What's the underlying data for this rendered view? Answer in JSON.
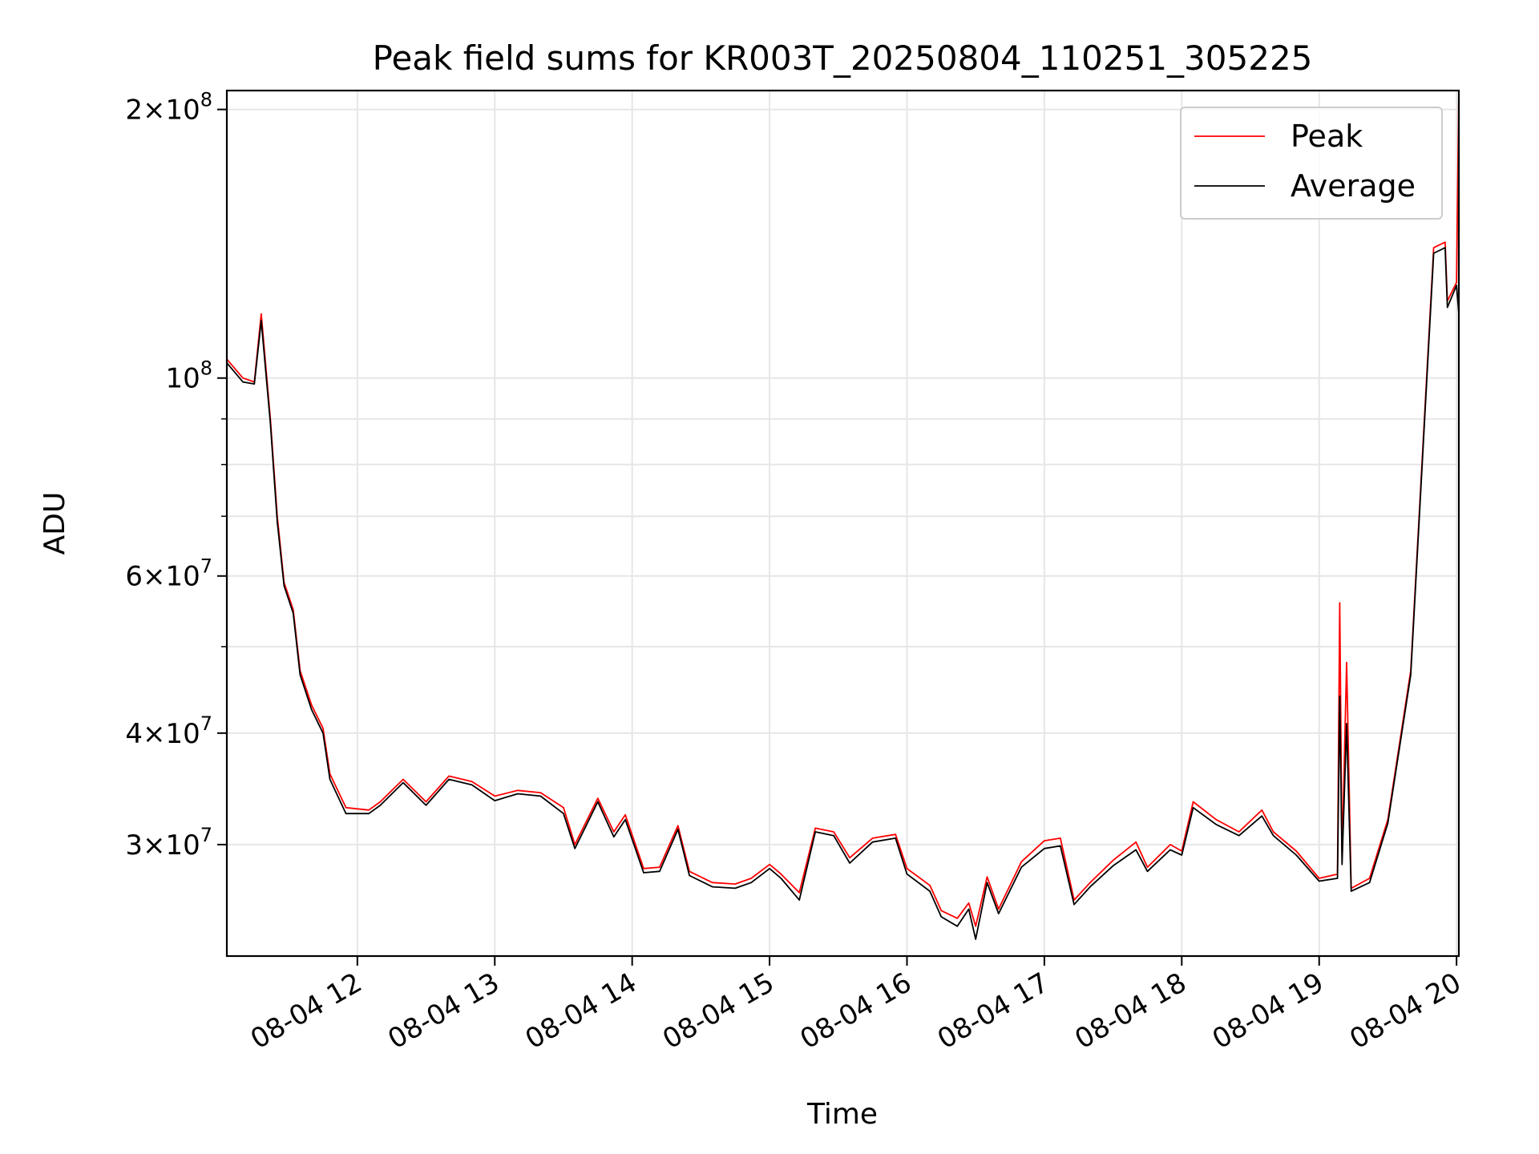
{
  "chart_data": {
    "type": "line",
    "title": "Peak field sums for KR003T_20250804_110251_305225",
    "xlabel": "Time",
    "ylabel": "ADU",
    "yscale": "log",
    "ylim": [
      22500000,
      210000000
    ],
    "xlim": [
      "2025-08-04T11:03",
      "2025-08-04T20:01"
    ],
    "grid": true,
    "legend_position": "upper right",
    "x_ticks": [
      {
        "label": "08-04 12",
        "t": "2025-08-04T12:00"
      },
      {
        "label": "08-04 13",
        "t": "2025-08-04T13:00"
      },
      {
        "label": "08-04 14",
        "t": "2025-08-04T14:00"
      },
      {
        "label": "08-04 15",
        "t": "2025-08-04T15:00"
      },
      {
        "label": "08-04 16",
        "t": "2025-08-04T16:00"
      },
      {
        "label": "08-04 17",
        "t": "2025-08-04T17:00"
      },
      {
        "label": "08-04 18",
        "t": "2025-08-04T18:00"
      },
      {
        "label": "08-04 19",
        "t": "2025-08-04T19:00"
      },
      {
        "label": "08-04 20",
        "t": "2025-08-04T20:00"
      }
    ],
    "y_ticks": [
      {
        "value": 30000000,
        "mantissa": "3",
        "exp": "7"
      },
      {
        "value": 40000000,
        "mantissa": "4",
        "exp": "7"
      },
      {
        "value": 60000000,
        "mantissa": "6",
        "exp": "7"
      },
      {
        "value": 100000000,
        "mantissa": "",
        "exp": "8"
      },
      {
        "value": 200000000,
        "mantissa": "2",
        "exp": "8"
      }
    ],
    "y_minor_ticks": [
      50000000,
      70000000,
      80000000,
      90000000
    ],
    "series": [
      {
        "name": "Peak",
        "color": "#ff0000",
        "points": [
          [
            "2025-08-04T11:03",
            105000000
          ],
          [
            "2025-08-04T11:10",
            100000000
          ],
          [
            "2025-08-04T11:15",
            99000000
          ],
          [
            "2025-08-04T11:18",
            118000000
          ],
          [
            "2025-08-04T11:22",
            90000000
          ],
          [
            "2025-08-04T11:25",
            70000000
          ],
          [
            "2025-08-04T11:28",
            59000000
          ],
          [
            "2025-08-04T11:32",
            55000000
          ],
          [
            "2025-08-04T11:35",
            47000000
          ],
          [
            "2025-08-04T11:40",
            43000000
          ],
          [
            "2025-08-04T11:45",
            40500000
          ],
          [
            "2025-08-04T11:48",
            36000000
          ],
          [
            "2025-08-04T11:55",
            33000000
          ],
          [
            "2025-08-04T12:05",
            32800000
          ],
          [
            "2025-08-04T12:10",
            33500000
          ],
          [
            "2025-08-04T12:20",
            35500000
          ],
          [
            "2025-08-04T12:30",
            33500000
          ],
          [
            "2025-08-04T12:40",
            35800000
          ],
          [
            "2025-08-04T12:50",
            35300000
          ],
          [
            "2025-08-04T13:00",
            34000000
          ],
          [
            "2025-08-04T13:10",
            34500000
          ],
          [
            "2025-08-04T13:20",
            34300000
          ],
          [
            "2025-08-04T13:30",
            33000000
          ],
          [
            "2025-08-04T13:35",
            30000000
          ],
          [
            "2025-08-04T13:45",
            33800000
          ],
          [
            "2025-08-04T13:52",
            31000000
          ],
          [
            "2025-08-04T13:57",
            32400000
          ],
          [
            "2025-08-04T14:05",
            28200000
          ],
          [
            "2025-08-04T14:12",
            28300000
          ],
          [
            "2025-08-04T14:20",
            31500000
          ],
          [
            "2025-08-04T14:25",
            28000000
          ],
          [
            "2025-08-04T14:35",
            27200000
          ],
          [
            "2025-08-04T14:45",
            27100000
          ],
          [
            "2025-08-04T14:52",
            27500000
          ],
          [
            "2025-08-04T15:00",
            28500000
          ],
          [
            "2025-08-04T15:05",
            27800000
          ],
          [
            "2025-08-04T15:13",
            26500000
          ],
          [
            "2025-08-04T15:20",
            31300000
          ],
          [
            "2025-08-04T15:28",
            31000000
          ],
          [
            "2025-08-04T15:35",
            29000000
          ],
          [
            "2025-08-04T15:45",
            30500000
          ],
          [
            "2025-08-04T15:55",
            30800000
          ],
          [
            "2025-08-04T16:00",
            28200000
          ],
          [
            "2025-08-04T16:10",
            27000000
          ],
          [
            "2025-08-04T16:15",
            25300000
          ],
          [
            "2025-08-04T16:22",
            24800000
          ],
          [
            "2025-08-04T16:27",
            25800000
          ],
          [
            "2025-08-04T16:30",
            24300000
          ],
          [
            "2025-08-04T16:35",
            27600000
          ],
          [
            "2025-08-04T16:40",
            25400000
          ],
          [
            "2025-08-04T16:50",
            28700000
          ],
          [
            "2025-08-04T17:00",
            30300000
          ],
          [
            "2025-08-04T17:07",
            30500000
          ],
          [
            "2025-08-04T17:13",
            26000000
          ],
          [
            "2025-08-04T17:20",
            27200000
          ],
          [
            "2025-08-04T17:30",
            28800000
          ],
          [
            "2025-08-04T17:40",
            30200000
          ],
          [
            "2025-08-04T17:45",
            28300000
          ],
          [
            "2025-08-04T17:55",
            30000000
          ],
          [
            "2025-08-04T18:00",
            29500000
          ],
          [
            "2025-08-04T18:05",
            33500000
          ],
          [
            "2025-08-04T18:15",
            32000000
          ],
          [
            "2025-08-04T18:25",
            31000000
          ],
          [
            "2025-08-04T18:35",
            32800000
          ],
          [
            "2025-08-04T18:40",
            31000000
          ],
          [
            "2025-08-04T18:50",
            29500000
          ],
          [
            "2025-08-04T19:00",
            27500000
          ],
          [
            "2025-08-04T19:08",
            27800000
          ],
          [
            "2025-08-04T19:09",
            56000000
          ],
          [
            "2025-08-04T19:10",
            29000000
          ],
          [
            "2025-08-04T19:12",
            48000000
          ],
          [
            "2025-08-04T19:14",
            26800000
          ],
          [
            "2025-08-04T19:22",
            27500000
          ],
          [
            "2025-08-04T19:30",
            32000000
          ],
          [
            "2025-08-04T19:40",
            47000000
          ],
          [
            "2025-08-04T19:50",
            140000000
          ],
          [
            "2025-08-04T19:55",
            142000000
          ],
          [
            "2025-08-04T19:56",
            122000000
          ],
          [
            "2025-08-04T20:00",
            128000000
          ],
          [
            "2025-08-04T20:01",
            210000000
          ]
        ]
      },
      {
        "name": "Average",
        "color": "#000000",
        "points": [
          [
            "2025-08-04T11:03",
            104000000
          ],
          [
            "2025-08-04T11:10",
            99000000
          ],
          [
            "2025-08-04T11:15",
            98500000
          ],
          [
            "2025-08-04T11:18",
            116000000
          ],
          [
            "2025-08-04T11:22",
            89000000
          ],
          [
            "2025-08-04T11:25",
            69000000
          ],
          [
            "2025-08-04T11:28",
            58500000
          ],
          [
            "2025-08-04T11:32",
            54500000
          ],
          [
            "2025-08-04T11:35",
            46500000
          ],
          [
            "2025-08-04T11:40",
            42500000
          ],
          [
            "2025-08-04T11:45",
            40000000
          ],
          [
            "2025-08-04T11:48",
            35500000
          ],
          [
            "2025-08-04T11:55",
            32500000
          ],
          [
            "2025-08-04T12:05",
            32500000
          ],
          [
            "2025-08-04T12:10",
            33200000
          ],
          [
            "2025-08-04T12:20",
            35200000
          ],
          [
            "2025-08-04T12:30",
            33200000
          ],
          [
            "2025-08-04T12:40",
            35500000
          ],
          [
            "2025-08-04T12:50",
            35000000
          ],
          [
            "2025-08-04T13:00",
            33600000
          ],
          [
            "2025-08-04T13:10",
            34200000
          ],
          [
            "2025-08-04T13:20",
            34000000
          ],
          [
            "2025-08-04T13:30",
            32500000
          ],
          [
            "2025-08-04T13:35",
            29700000
          ],
          [
            "2025-08-04T13:45",
            33500000
          ],
          [
            "2025-08-04T13:52",
            30600000
          ],
          [
            "2025-08-04T13:57",
            32000000
          ],
          [
            "2025-08-04T14:05",
            27900000
          ],
          [
            "2025-08-04T14:12",
            28000000
          ],
          [
            "2025-08-04T14:20",
            31200000
          ],
          [
            "2025-08-04T14:25",
            27700000
          ],
          [
            "2025-08-04T14:35",
            26900000
          ],
          [
            "2025-08-04T14:45",
            26800000
          ],
          [
            "2025-08-04T14:52",
            27200000
          ],
          [
            "2025-08-04T15:00",
            28200000
          ],
          [
            "2025-08-04T15:05",
            27500000
          ],
          [
            "2025-08-04T15:13",
            26000000
          ],
          [
            "2025-08-04T15:20",
            31000000
          ],
          [
            "2025-08-04T15:28",
            30700000
          ],
          [
            "2025-08-04T15:35",
            28600000
          ],
          [
            "2025-08-04T15:45",
            30200000
          ],
          [
            "2025-08-04T15:55",
            30500000
          ],
          [
            "2025-08-04T16:00",
            27800000
          ],
          [
            "2025-08-04T16:10",
            26600000
          ],
          [
            "2025-08-04T16:15",
            24900000
          ],
          [
            "2025-08-04T16:22",
            24300000
          ],
          [
            "2025-08-04T16:27",
            25400000
          ],
          [
            "2025-08-04T16:30",
            23500000
          ],
          [
            "2025-08-04T16:35",
            27200000
          ],
          [
            "2025-08-04T16:40",
            25100000
          ],
          [
            "2025-08-04T16:50",
            28300000
          ],
          [
            "2025-08-04T17:00",
            29700000
          ],
          [
            "2025-08-04T17:07",
            29900000
          ],
          [
            "2025-08-04T17:13",
            25700000
          ],
          [
            "2025-08-04T17:20",
            26900000
          ],
          [
            "2025-08-04T17:30",
            28400000
          ],
          [
            "2025-08-04T17:40",
            29600000
          ],
          [
            "2025-08-04T17:45",
            28000000
          ],
          [
            "2025-08-04T17:55",
            29600000
          ],
          [
            "2025-08-04T18:00",
            29200000
          ],
          [
            "2025-08-04T18:05",
            33000000
          ],
          [
            "2025-08-04T18:15",
            31600000
          ],
          [
            "2025-08-04T18:25",
            30700000
          ],
          [
            "2025-08-04T18:35",
            32300000
          ],
          [
            "2025-08-04T18:40",
            30700000
          ],
          [
            "2025-08-04T18:50",
            29200000
          ],
          [
            "2025-08-04T19:00",
            27300000
          ],
          [
            "2025-08-04T19:08",
            27500000
          ],
          [
            "2025-08-04T19:09",
            44000000
          ],
          [
            "2025-08-04T19:10",
            28500000
          ],
          [
            "2025-08-04T19:12",
            41000000
          ],
          [
            "2025-08-04T19:14",
            26600000
          ],
          [
            "2025-08-04T19:22",
            27200000
          ],
          [
            "2025-08-04T19:30",
            31700000
          ],
          [
            "2025-08-04T19:40",
            46500000
          ],
          [
            "2025-08-04T19:50",
            138000000
          ],
          [
            "2025-08-04T19:55",
            140000000
          ],
          [
            "2025-08-04T19:56",
            120000000
          ],
          [
            "2025-08-04T20:00",
            127000000
          ],
          [
            "2025-08-04T20:01",
            118000000
          ]
        ]
      }
    ]
  }
}
